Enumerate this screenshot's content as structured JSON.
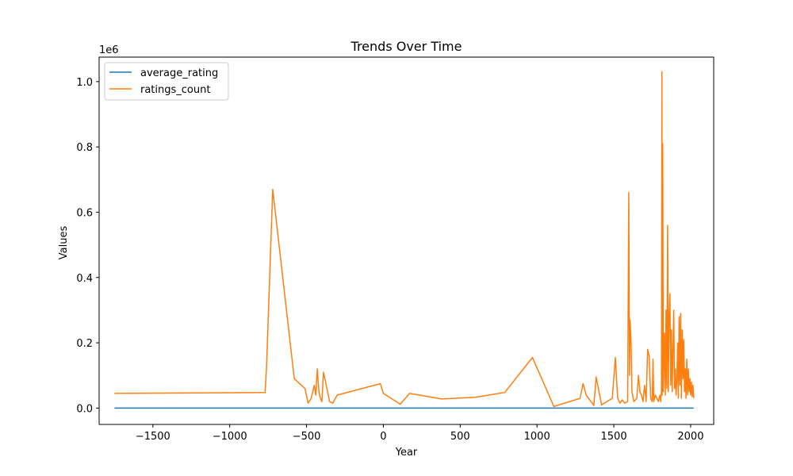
{
  "chart_data": {
    "type": "line",
    "title": "Trends Over Time",
    "xlabel": "Year",
    "ylabel": "Values",
    "y_offset_text": "1e6",
    "xlim": [
      -1850,
      2150
    ],
    "ylim": [
      -0.05,
      1.075
    ],
    "x_ticks": [
      -1500,
      -1000,
      -500,
      0,
      500,
      1000,
      1500,
      2000
    ],
    "x_tick_labels": [
      "−1500",
      "−1000",
      "−500",
      "0",
      "500",
      "1000",
      "1500",
      "2000"
    ],
    "y_ticks": [
      0.0,
      0.2,
      0.4,
      0.6,
      0.8,
      1.0
    ],
    "y_tick_labels": [
      "0.0",
      "0.2",
      "0.4",
      "0.6",
      "0.8",
      "1.0"
    ],
    "grid": false,
    "legend_position": "top-left",
    "series": [
      {
        "name": "average_rating",
        "color": "#1f77b4",
        "points": [
          [
            -1750,
            0.0
          ],
          [
            2020,
            0.0
          ]
        ]
      },
      {
        "name": "ratings_count",
        "color": "#ff7f0e",
        "points": [
          [
            -1750,
            0.045
          ],
          [
            -770,
            0.048
          ],
          [
            -760,
            0.13
          ],
          [
            -720,
            0.67
          ],
          [
            -580,
            0.09
          ],
          [
            -510,
            0.06
          ],
          [
            -490,
            0.015
          ],
          [
            -470,
            0.03
          ],
          [
            -450,
            0.07
          ],
          [
            -440,
            0.04
          ],
          [
            -430,
            0.12
          ],
          [
            -420,
            0.05
          ],
          [
            -410,
            0.03
          ],
          [
            -400,
            0.02
          ],
          [
            -390,
            0.11
          ],
          [
            -380,
            0.09
          ],
          [
            -350,
            0.02
          ],
          [
            -330,
            0.015
          ],
          [
            -300,
            0.04
          ],
          [
            -20,
            0.075
          ],
          [
            0,
            0.045
          ],
          [
            110,
            0.012
          ],
          [
            170,
            0.045
          ],
          [
            380,
            0.028
          ],
          [
            600,
            0.033
          ],
          [
            790,
            0.048
          ],
          [
            970,
            0.155
          ],
          [
            1110,
            0.005
          ],
          [
            1280,
            0.03
          ],
          [
            1300,
            0.075
          ],
          [
            1320,
            0.04
          ],
          [
            1370,
            0.008
          ],
          [
            1385,
            0.095
          ],
          [
            1420,
            0.01
          ],
          [
            1490,
            0.03
          ],
          [
            1510,
            0.155
          ],
          [
            1525,
            0.03
          ],
          [
            1540,
            0.015
          ],
          [
            1555,
            0.025
          ],
          [
            1570,
            0.015
          ],
          [
            1590,
            0.02
          ],
          [
            1597,
            0.66
          ],
          [
            1602,
            0.1
          ],
          [
            1606,
            0.27
          ],
          [
            1612,
            0.2
          ],
          [
            1618,
            0.05
          ],
          [
            1630,
            0.02
          ],
          [
            1650,
            0.03
          ],
          [
            1660,
            0.1
          ],
          [
            1670,
            0.05
          ],
          [
            1680,
            0.04
          ],
          [
            1690,
            0.02
          ],
          [
            1700,
            0.07
          ],
          [
            1710,
            0.02
          ],
          [
            1720,
            0.18
          ],
          [
            1730,
            0.16
          ],
          [
            1740,
            0.03
          ],
          [
            1750,
            0.02
          ],
          [
            1755,
            0.15
          ],
          [
            1760,
            0.02
          ],
          [
            1770,
            0.04
          ],
          [
            1780,
            0.03
          ],
          [
            1790,
            0.02
          ],
          [
            1800,
            0.04
          ],
          [
            1805,
            0.02
          ],
          [
            1810,
            0.05
          ],
          [
            1813,
            1.03
          ],
          [
            1815,
            0.04
          ],
          [
            1818,
            0.81
          ],
          [
            1822,
            0.05
          ],
          [
            1830,
            0.23
          ],
          [
            1835,
            0.04
          ],
          [
            1840,
            0.3
          ],
          [
            1845,
            0.06
          ],
          [
            1850,
            0.56
          ],
          [
            1855,
            0.05
          ],
          [
            1860,
            0.28
          ],
          [
            1865,
            0.35
          ],
          [
            1870,
            0.07
          ],
          [
            1875,
            0.24
          ],
          [
            1880,
            0.05
          ],
          [
            1885,
            0.18
          ],
          [
            1890,
            0.3
          ],
          [
            1895,
            0.06
          ],
          [
            1900,
            0.12
          ],
          [
            1905,
            0.04
          ],
          [
            1910,
            0.08
          ],
          [
            1915,
            0.2
          ],
          [
            1920,
            0.03
          ],
          [
            1925,
            0.28
          ],
          [
            1930,
            0.07
          ],
          [
            1935,
            0.29
          ],
          [
            1940,
            0.03
          ],
          [
            1945,
            0.24
          ],
          [
            1950,
            0.09
          ],
          [
            1955,
            0.21
          ],
          [
            1960,
            0.05
          ],
          [
            1965,
            0.12
          ],
          [
            1970,
            0.03
          ],
          [
            1975,
            0.15
          ],
          [
            1980,
            0.04
          ],
          [
            1985,
            0.12
          ],
          [
            1990,
            0.05
          ],
          [
            1995,
            0.09
          ],
          [
            2000,
            0.04
          ],
          [
            2005,
            0.08
          ],
          [
            2010,
            0.035
          ],
          [
            2015,
            0.07
          ],
          [
            2020,
            0.03
          ]
        ]
      }
    ]
  }
}
